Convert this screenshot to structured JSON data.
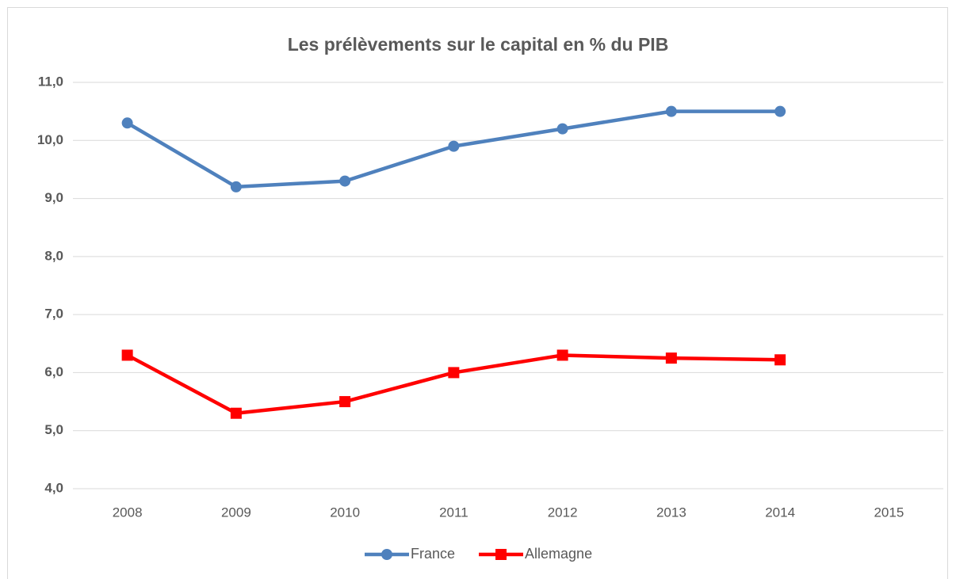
{
  "chart_data": {
    "type": "line",
    "title": "Les prélèvements sur le capital en % du PIB",
    "categories": [
      "2008",
      "2009",
      "2010",
      "2011",
      "2012",
      "2013",
      "2014",
      "2015"
    ],
    "series": [
      {
        "name": "France",
        "color": "#4f81bd",
        "marker": "circle",
        "values": [
          10.3,
          9.2,
          9.3,
          9.9,
          10.2,
          10.5,
          10.5,
          null
        ]
      },
      {
        "name": "Allemagne",
        "color": "#ff0000",
        "marker": "square",
        "values": [
          6.3,
          5.3,
          5.5,
          6.0,
          6.3,
          6.25,
          6.22,
          null
        ]
      }
    ],
    "ylim": [
      4,
      11
    ],
    "yticks": [
      {
        "value": 4,
        "label": "4,0"
      },
      {
        "value": 5,
        "label": "5,0"
      },
      {
        "value": 6,
        "label": "6,0"
      },
      {
        "value": 7,
        "label": "7,0"
      },
      {
        "value": 8,
        "label": "8,0"
      },
      {
        "value": 9,
        "label": "9,0"
      },
      {
        "value": 10,
        "label": "10,0"
      },
      {
        "value": 11,
        "label": "11,0"
      }
    ],
    "grid": true,
    "legend": "bottom"
  }
}
